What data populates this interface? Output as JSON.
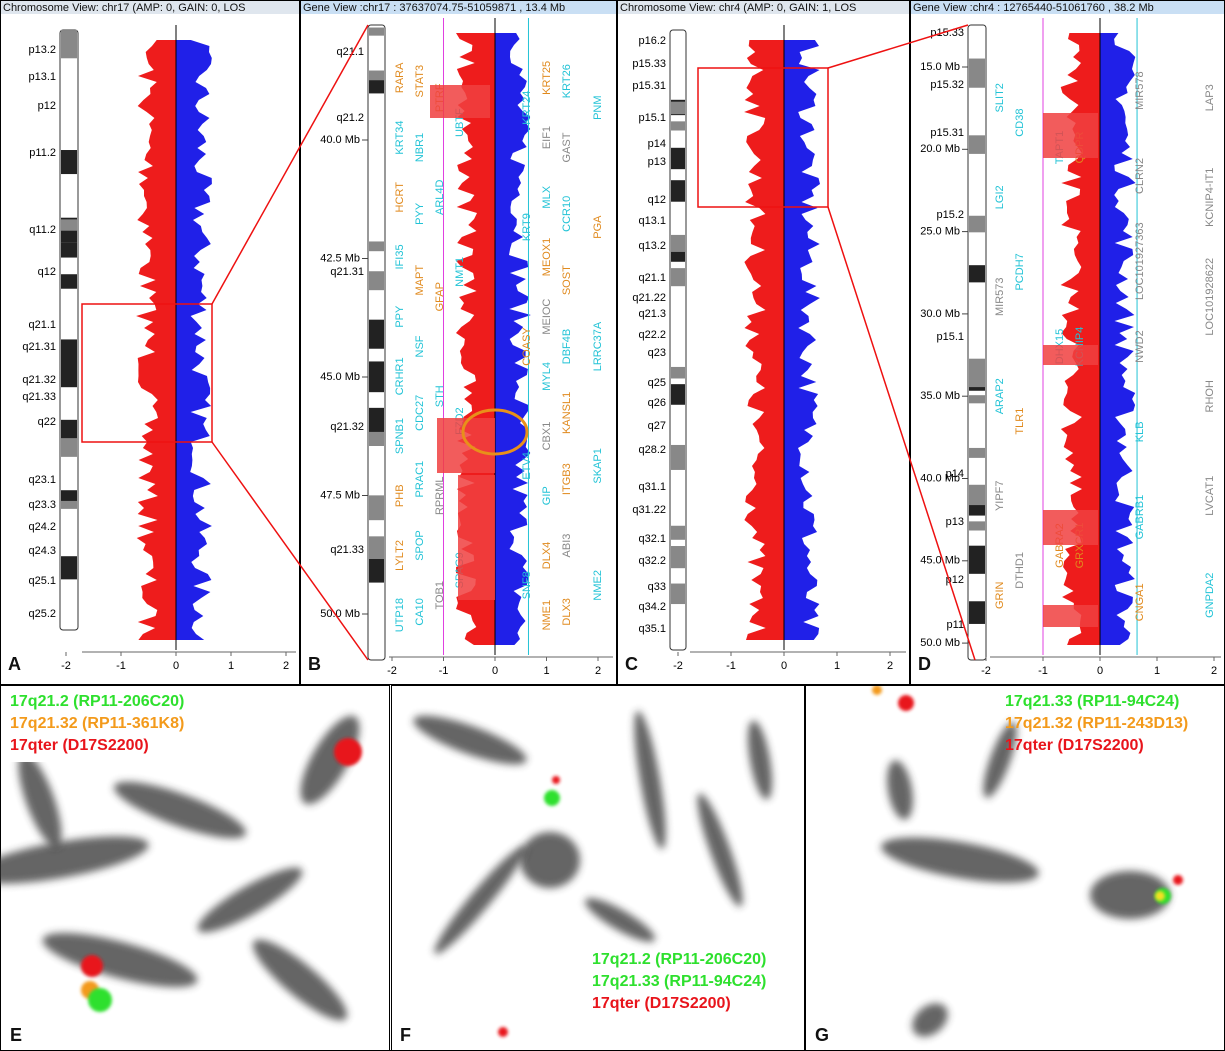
{
  "panels": [
    {
      "letter": "A",
      "header": "Chromosome View: chr17 (AMP: 0, GAIN: 0, LOS",
      "bands": [
        "p13.2",
        "p13.1",
        "p12",
        "p11.2",
        "q11.2",
        "q12",
        "q21.1",
        "q21.31",
        "q21.32",
        "q21.33",
        "q22",
        "q23.1",
        "q23.3",
        "q24.2",
        "q24.3",
        "q25.1",
        "q25.2"
      ],
      "xticks": [
        -2,
        -1,
        0,
        1,
        2
      ]
    },
    {
      "letter": "B",
      "header": "Gene View :chr17 : 37637074.75-51059871 , 13.4 Mb",
      "bands": [
        "q21.1",
        "q21.2",
        "q21.31",
        "q21.32",
        "q21.33"
      ],
      "xticks": [
        -2,
        -1,
        0,
        1,
        2
      ],
      "yticks": [
        {
          "value": 40,
          "label": "40.0 Mb"
        },
        {
          "value": 42.5,
          "label": "42.5 Mb"
        },
        {
          "value": 45,
          "label": "45.0 Mb"
        },
        {
          "value": 47.5,
          "label": "47.5 Mb"
        },
        {
          "value": 50,
          "label": "50.0 Mb"
        }
      ],
      "genes": [
        [
          {
            "name": "RARA",
            "color": "#e08a1e"
          },
          {
            "name": "KRT34",
            "color": "#22c3d6"
          },
          {
            "name": "HCRT",
            "color": "#e08a1e"
          },
          {
            "name": "IFI35",
            "color": "#22c3d6"
          },
          {
            "name": "PPY",
            "color": "#22c3d6"
          },
          {
            "name": "CRHR1",
            "color": "#22c3d6"
          },
          {
            "name": "SPNB1",
            "color": "#22c3d6"
          },
          {
            "name": "PHB",
            "color": "#e08a1e"
          },
          {
            "name": "LYLT2",
            "color": "#e08a1e"
          },
          {
            "name": "UTP18",
            "color": "#22c3d6"
          }
        ],
        [
          {
            "name": "STAT3",
            "color": "#e08a1e"
          },
          {
            "name": "NBR1",
            "color": "#22c3d6"
          },
          {
            "name": "PYY",
            "color": "#22c3d6"
          },
          {
            "name": "MAPT",
            "color": "#e08a1e"
          },
          {
            "name": "NSF",
            "color": "#22c3d6"
          },
          {
            "name": "CDC27",
            "color": "#22c3d6"
          },
          {
            "name": "PRAC1",
            "color": "#22c3d6"
          },
          {
            "name": "SPOP",
            "color": "#22c3d6"
          },
          {
            "name": "CA10",
            "color": "#22c3d6"
          }
        ],
        [
          {
            "name": "PTRF",
            "color": "#e08a1e"
          },
          {
            "name": "ARL4D",
            "color": "#22c3d6"
          },
          {
            "name": "GFAP",
            "color": "#e08a1e"
          },
          {
            "name": "STH",
            "color": "#22c3d6"
          },
          {
            "name": "RPRML",
            "color": "#888888"
          },
          {
            "name": "TOB1",
            "color": "#888888"
          }
        ],
        [
          {
            "name": "UBTF",
            "color": "#22c3d6"
          },
          {
            "name": "NMT1",
            "color": "#22c3d6"
          },
          {
            "name": "FZD2",
            "color": "#22c3d6"
          },
          {
            "name": "SPAG9",
            "color": "#22c3d6"
          }
        ],
        [
          {
            "name": "KRT24",
            "color": "#22c3d6"
          },
          {
            "name": "KRT9",
            "color": "#22c3d6"
          },
          {
            "name": "COASY",
            "color": "#e08a1e"
          },
          {
            "name": "ETV4",
            "color": "#22c3d6"
          },
          {
            "name": "SNF8",
            "color": "#22c3d6"
          }
        ],
        [
          {
            "name": "KRT25",
            "color": "#e08a1e"
          },
          {
            "name": "EIF1",
            "color": "#888888"
          },
          {
            "name": "MLX",
            "color": "#22c3d6"
          },
          {
            "name": "MEOX1",
            "color": "#e08a1e"
          },
          {
            "name": "MEIOC",
            "color": "#888888"
          },
          {
            "name": "MYL4",
            "color": "#22c3d6"
          },
          {
            "name": "CBX1",
            "color": "#888888"
          },
          {
            "name": "GIP",
            "color": "#22c3d6"
          },
          {
            "name": "DLX4",
            "color": "#e08a1e"
          },
          {
            "name": "NME1",
            "color": "#e08a1e"
          }
        ],
        [
          {
            "name": "KRT26",
            "color": "#22c3d6"
          },
          {
            "name": "GAST",
            "color": "#888888"
          },
          {
            "name": "CCR10",
            "color": "#22c3d6"
          },
          {
            "name": "SOST",
            "color": "#e08a1e"
          },
          {
            "name": "DBF4B",
            "color": "#22c3d6"
          },
          {
            "name": "KANSL1",
            "color": "#e08a1e"
          },
          {
            "name": "ITGB3",
            "color": "#e08a1e"
          },
          {
            "name": "ABI3",
            "color": "#888888"
          },
          {
            "name": "DLX3",
            "color": "#e08a1e"
          }
        ],
        [
          {
            "name": "PNM",
            "color": "#22c3d6"
          },
          {
            "name": "PGA",
            "color": "#e08a1e"
          },
          {
            "name": "LRRC37A",
            "color": "#22c3d6"
          },
          {
            "name": "SKAP1",
            "color": "#22c3d6"
          },
          {
            "name": "NME2",
            "color": "#22c3d6"
          }
        ]
      ]
    },
    {
      "letter": "C",
      "header": "Chromosome View: chr4 (AMP: 0, GAIN: 1, LOS",
      "bands": [
        "p16.2",
        "p15.33",
        "p15.31",
        "p15.1",
        "p14",
        "p13",
        "q12",
        "q13.1",
        "q13.2",
        "q21.1",
        "q21.22",
        "q21.3",
        "q22.2",
        "q23",
        "q25",
        "q26",
        "q27",
        "q28.2",
        "q31.1",
        "q31.22",
        "q32.1",
        "q32.2",
        "q33",
        "q34.2",
        "q35.1"
      ],
      "xticks": [
        -2,
        -1,
        0,
        1,
        2
      ]
    },
    {
      "letter": "D",
      "header": "Gene View :chr4 : 12765440-51061760 , 38.2 Mb",
      "bands": [
        "p15.33",
        "p15.32",
        "p15.31",
        "p15.2",
        "p15.1",
        "p14",
        "p13",
        "p12",
        "p11"
      ],
      "xticks": [
        -2,
        -1,
        0,
        1,
        2
      ],
      "yticks": [
        {
          "value": 15,
          "label": "15.0 Mb"
        },
        {
          "value": 20,
          "label": "20.0 Mb"
        },
        {
          "value": 25,
          "label": "25.0 Mb"
        },
        {
          "value": 30,
          "label": "30.0 Mb"
        },
        {
          "value": 35,
          "label": "35.0 Mb"
        },
        {
          "value": 40,
          "label": "40.0 Mb"
        },
        {
          "value": 45,
          "label": "45.0 Mb"
        },
        {
          "value": 50,
          "label": "50.0 Mb"
        }
      ],
      "genes": [
        [
          {
            "name": "SLIT2",
            "color": "#22c3d6"
          },
          {
            "name": "LGI2",
            "color": "#22c3d6"
          },
          {
            "name": "MIR573",
            "color": "#888888"
          },
          {
            "name": "ARAP2",
            "color": "#22c3d6"
          },
          {
            "name": "YIPF7",
            "color": "#888888"
          },
          {
            "name": "GRIN",
            "color": "#e08a1e"
          }
        ],
        [
          {
            "name": "CD38",
            "color": "#22c3d6"
          },
          {
            "name": "PCDH7",
            "color": "#22c3d6"
          },
          {
            "name": "TLR1",
            "color": "#e08a1e"
          },
          {
            "name": "DTHD1",
            "color": "#888888"
          }
        ],
        [
          {
            "name": "TAPT1",
            "color": "#22c3d6"
          },
          {
            "name": "DHX15",
            "color": "#22c3d6"
          },
          {
            "name": "GABRA2",
            "color": "#e08a1e"
          }
        ],
        [
          {
            "name": "QDPR",
            "color": "#e08a1e"
          },
          {
            "name": "KCNIP4",
            "color": "#22c3d6"
          },
          {
            "name": "GRXCR1",
            "color": "#e08a1e"
          }
        ],
        [
          {
            "name": "MIR578",
            "color": "#888888"
          },
          {
            "name": "CLRN2",
            "color": "#888888"
          },
          {
            "name": "LOC101927363",
            "color": "#888888"
          },
          {
            "name": "NWD2",
            "color": "#888888"
          },
          {
            "name": "KLB",
            "color": "#22c3d6"
          },
          {
            "name": "GABRB1",
            "color": "#22c3d6"
          },
          {
            "name": "CNGA1",
            "color": "#e08a1e"
          }
        ],
        [
          {
            "name": "LAP3",
            "color": "#888888"
          },
          {
            "name": "KCNIP4-IT1",
            "color": "#888888"
          },
          {
            "name": "LOC101928622",
            "color": "#888888"
          },
          {
            "name": "RHOH",
            "color": "#888888"
          },
          {
            "name": "LVCAT1",
            "color": "#888888"
          },
          {
            "name": "GNPDA2",
            "color": "#22c3d6"
          }
        ]
      ]
    }
  ],
  "fish": [
    {
      "letter": "E",
      "probes": [
        {
          "text": "17q21.2 (RP11-206C20)",
          "color": "#2ee02e"
        },
        {
          "text": "17q21.32 (RP11-361K8)",
          "color": "#f39a1b"
        },
        {
          "text": "17qter (D17S2200)",
          "color": "#e8141b"
        }
      ]
    },
    {
      "letter": "F",
      "probes": [
        {
          "text": "17q21.2 (RP11-206C20)",
          "color": "#2ee02e"
        },
        {
          "text": "17q21.33 (RP11-94C24)",
          "color": "#2ee02e"
        },
        {
          "text": "17qter (D17S2200)",
          "color": "#e8141b"
        }
      ]
    },
    {
      "letter": "G",
      "probes": [
        {
          "text": "17q21.33 (RP11-94C24)",
          "color": "#2ee02e"
        },
        {
          "text": "17q21.32 (RP11-243D13)",
          "color": "#f39a1b"
        },
        {
          "text": "17qter (D17S2200)",
          "color": "#e8141b"
        }
      ]
    }
  ]
}
